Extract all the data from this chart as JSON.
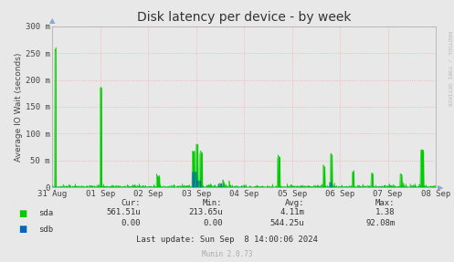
{
  "title": "Disk latency per device - by week",
  "ylabel": "Average IO Wait (seconds)",
  "background_color": "#e8e8e8",
  "plot_bg_color": "#e8e8e8",
  "grid_color": "#ff9999",
  "sda_color": "#00cc00",
  "sdb_color": "#0066bb",
  "x_tick_labels": [
    "31 Aug",
    "01 Sep",
    "02 Sep",
    "03 Sep",
    "04 Sep",
    "05 Sep",
    "06 Sep",
    "07 Sep",
    "08 Sep"
  ],
  "y_tick_labels": [
    "0",
    "50 m",
    "100 m",
    "150 m",
    "200 m",
    "250 m",
    "300 m"
  ],
  "y_max": 0.3,
  "y_min": 0.0,
  "cur_label": "Cur:",
  "min_label": "Min:",
  "avg_label": "Avg:",
  "max_label": "Max:",
  "sda_cur": "561.51u",
  "sda_min": "213.65u",
  "sda_avg": "4.11m",
  "sda_max": "1.38",
  "sdb_cur": "0.00",
  "sdb_min": "0.00",
  "sdb_avg": "544.25u",
  "sdb_max": "92.08m",
  "footer_text": "Last update: Sun Sep  8 14:00:06 2024",
  "munin_text": "Munin 2.0.73",
  "rrdtool_text": "RRDTOOL / TOBI OETIKER"
}
